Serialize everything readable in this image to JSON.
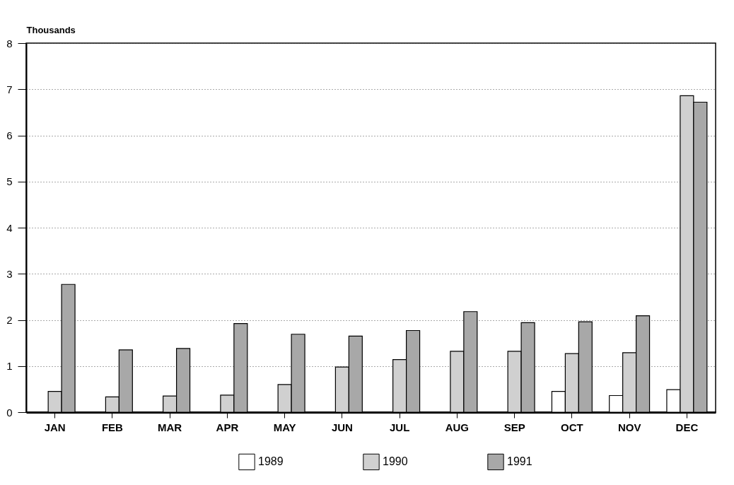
{
  "chart_data": {
    "type": "bar",
    "ylabel": "Thousands",
    "categories": [
      "JAN",
      "FEB",
      "MAR",
      "APR",
      "MAY",
      "JUN",
      "JUL",
      "AUG",
      "SEP",
      "OCT",
      "NOV",
      "DEC"
    ],
    "series": [
      {
        "name": "1989",
        "color": "#ffffff",
        "values": [
          null,
          null,
          null,
          null,
          null,
          null,
          null,
          null,
          null,
          0.45,
          0.36,
          0.49
        ]
      },
      {
        "name": "1990",
        "color": "#d0d0d0",
        "values": [
          0.45,
          0.33,
          0.35,
          0.37,
          0.6,
          0.98,
          1.14,
          1.32,
          1.32,
          1.27,
          1.29,
          6.86
        ]
      },
      {
        "name": "1991",
        "color": "#a8a8a8",
        "values": [
          2.77,
          1.35,
          1.38,
          1.92,
          1.69,
          1.65,
          1.77,
          2.18,
          1.94,
          1.96,
          2.09,
          6.72
        ]
      }
    ],
    "ylim": [
      0,
      8
    ],
    "yticks": [
      0,
      1,
      2,
      3,
      4,
      5,
      6,
      7,
      8
    ],
    "grid": "y",
    "legend": "bottom"
  }
}
